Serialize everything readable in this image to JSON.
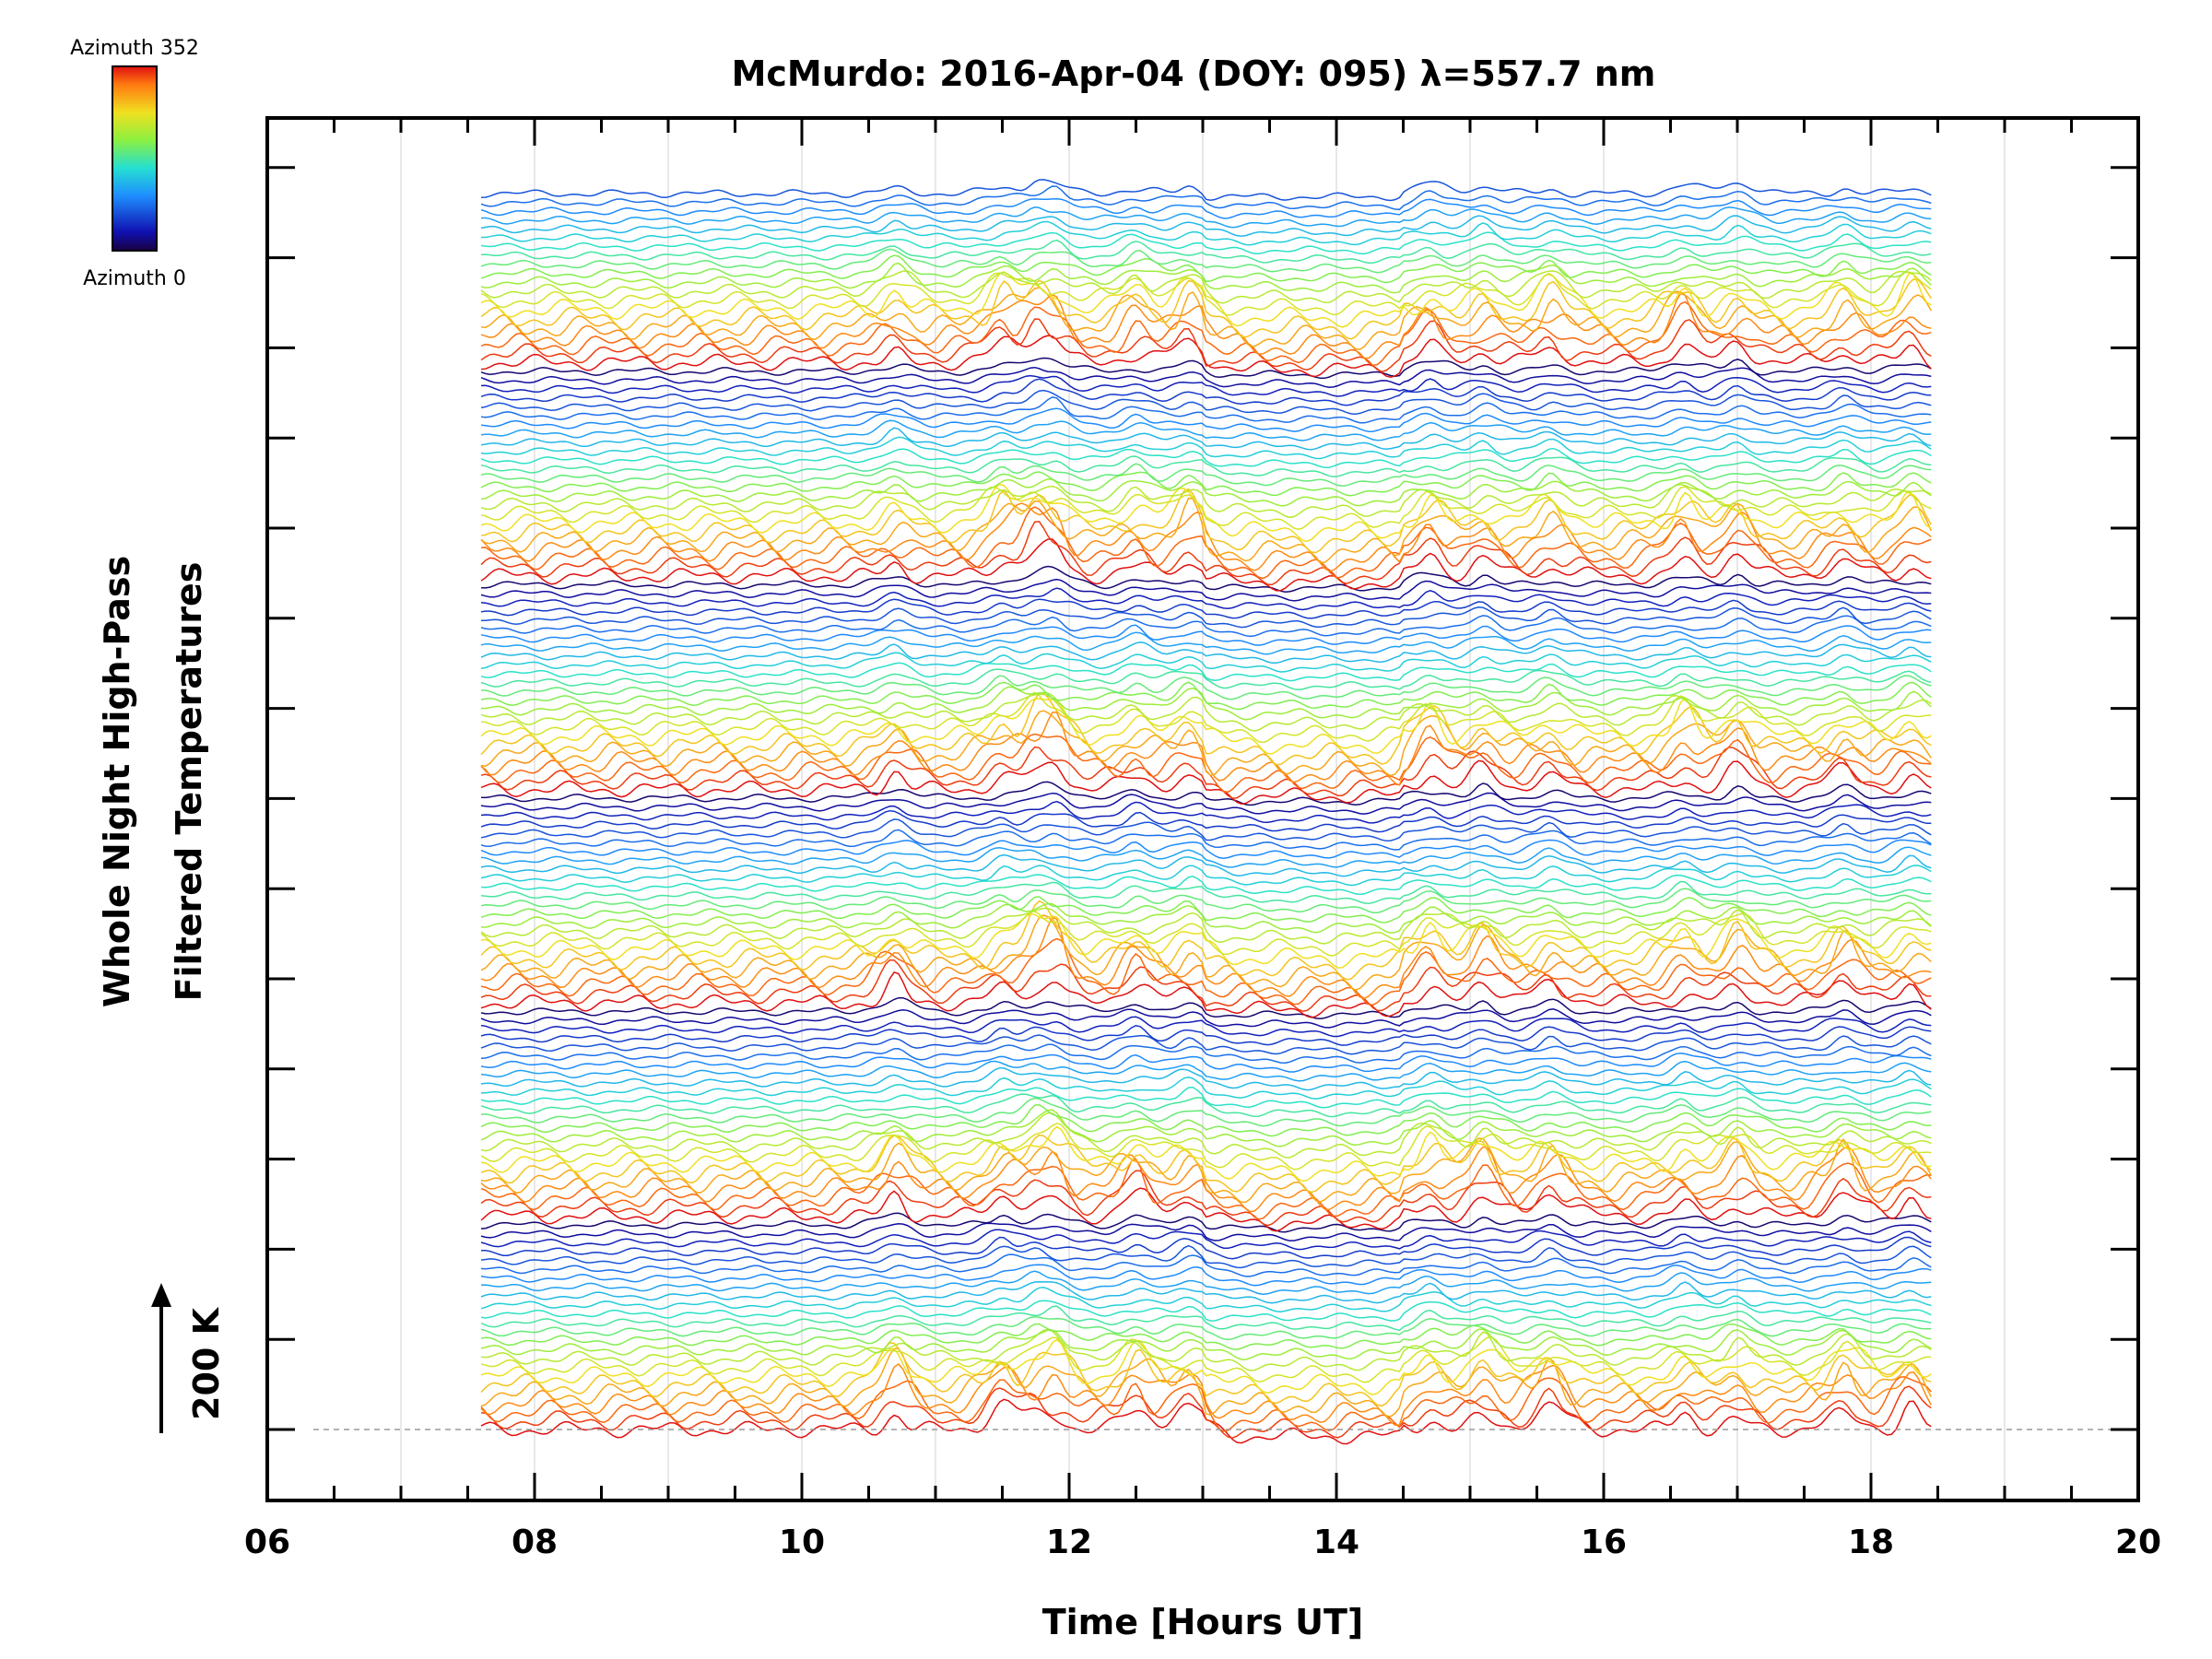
{
  "chart_data": {
    "type": "line",
    "title": "McMurdo: 2016-Apr-04 (DOY: 095) λ=557.7 nm",
    "xlabel": "Time [Hours UT]",
    "ylabel_line1": "Whole Night High-Pass",
    "ylabel_line2": "Filtered Temperatures",
    "xlim": [
      6,
      20
    ],
    "x_tick_labels": [
      "06",
      "08",
      "10",
      "12",
      "14",
      "16",
      "18",
      "20"
    ],
    "data_start_hour": 7.6,
    "data_end_hour": 18.45,
    "scale_bar_label": "200 K",
    "colorbar": {
      "top_label": "Azimuth 352",
      "bottom_label": "Azimuth 0"
    },
    "n_series": 140,
    "peaks_hours": [
      10.7,
      11.5,
      11.75,
      11.9,
      12.5,
      12.9,
      14.7,
      15.1,
      15.6,
      16.6,
      17.0,
      17.8,
      18.3
    ]
  }
}
